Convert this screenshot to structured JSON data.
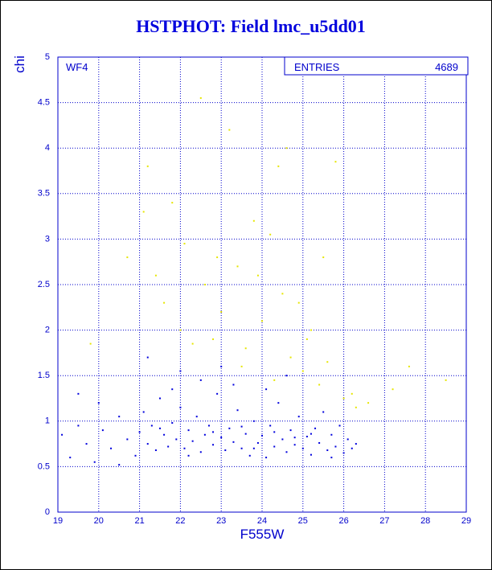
{
  "chart_data": {
    "type": "scatter",
    "title": "HSTPHOT: Field lmc_u5dd01",
    "x_label": "F555W",
    "y_label": "chi",
    "panel_label": "WF4",
    "entries_label": "ENTRIES",
    "entries": 4689,
    "xlim": [
      19,
      29
    ],
    "ylim": [
      0,
      5
    ],
    "xticks": [
      19,
      20,
      21,
      22,
      23,
      24,
      25,
      26,
      27,
      28,
      29
    ],
    "yticks": [
      0,
      0.5,
      1,
      1.5,
      2,
      2.5,
      3,
      3.5,
      4,
      4.5,
      5
    ],
    "grid": true,
    "series": [
      {
        "color": "#0000dd",
        "x": [
          19.1,
          19.3,
          19.5,
          19.7,
          19.9,
          20.1,
          20.3,
          20.5,
          20.7,
          20.9,
          21.0,
          21.1,
          21.2,
          21.3,
          21.4,
          21.5,
          21.6,
          21.7,
          21.8,
          21.9,
          22.0,
          22.1,
          22.2,
          22.3,
          22.4,
          22.5,
          22.6,
          22.7,
          22.8,
          22.9,
          23.0,
          23.1,
          23.2,
          23.3,
          23.4,
          23.5,
          23.6,
          23.7,
          23.8,
          23.9,
          24.0,
          24.1,
          24.2,
          24.3,
          24.4,
          24.5,
          24.6,
          24.7,
          24.8,
          24.9,
          25.0,
          25.1,
          25.2,
          25.3,
          25.4,
          25.5,
          25.6,
          25.7,
          25.8,
          25.9,
          26.0,
          26.1,
          26.2,
          21.2,
          22.0,
          22.5,
          23.0,
          23.3,
          24.1,
          24.6,
          21.8,
          20.0,
          19.5,
          22.2,
          23.5,
          24.3,
          25.2,
          25.7,
          22.8,
          23.8,
          24.8,
          21.5,
          26.3,
          20.5
        ],
        "values": [
          0.85,
          0.6,
          0.95,
          0.75,
          0.55,
          0.9,
          0.7,
          1.05,
          0.8,
          0.62,
          0.88,
          1.1,
          0.75,
          0.95,
          0.68,
          1.25,
          0.85,
          0.72,
          0.98,
          0.8,
          1.15,
          0.7,
          0.9,
          0.78,
          1.05,
          0.66,
          0.85,
          0.95,
          0.74,
          1.3,
          0.82,
          0.68,
          0.92,
          0.77,
          1.12,
          0.7,
          0.86,
          0.62,
          1.0,
          0.76,
          0.84,
          0.6,
          0.95,
          0.72,
          1.2,
          0.8,
          0.66,
          0.9,
          0.74,
          1.05,
          0.7,
          0.83,
          0.63,
          0.92,
          0.76,
          1.1,
          0.68,
          0.85,
          0.72,
          0.95,
          0.65,
          0.8,
          0.7,
          1.7,
          1.55,
          1.45,
          1.6,
          1.4,
          1.35,
          1.5,
          1.35,
          1.2,
          1.3,
          0.62,
          0.94,
          0.88,
          0.86,
          0.6,
          0.88,
          0.7,
          0.82,
          0.92,
          0.75,
          0.52
        ]
      },
      {
        "color": "#e6e600",
        "x": [
          21.2,
          21.4,
          21.6,
          21.8,
          22.0,
          22.3,
          22.5,
          22.6,
          22.8,
          23.0,
          23.2,
          23.4,
          23.6,
          23.8,
          24.0,
          24.2,
          24.4,
          24.5,
          24.7,
          24.9,
          25.0,
          25.2,
          25.4,
          25.6,
          25.8,
          26.0,
          26.3,
          26.6,
          27.2,
          27.6,
          28.5,
          19.8,
          20.7,
          21.1,
          22.1,
          22.9,
          23.5,
          24.6,
          25.1,
          25.5,
          26.2,
          24.3,
          23.9
        ],
        "values": [
          3.8,
          2.6,
          2.3,
          3.4,
          2.0,
          1.85,
          4.55,
          2.5,
          1.9,
          2.2,
          4.2,
          2.7,
          1.8,
          3.2,
          2.1,
          3.05,
          3.8,
          2.4,
          1.7,
          2.3,
          1.55,
          2.0,
          1.4,
          1.65,
          3.85,
          1.25,
          1.15,
          1.2,
          1.35,
          1.6,
          1.45,
          1.85,
          2.8,
          3.3,
          2.95,
          2.8,
          1.6,
          4.0,
          1.9,
          2.8,
          1.3,
          1.45,
          2.6
        ]
      }
    ]
  }
}
